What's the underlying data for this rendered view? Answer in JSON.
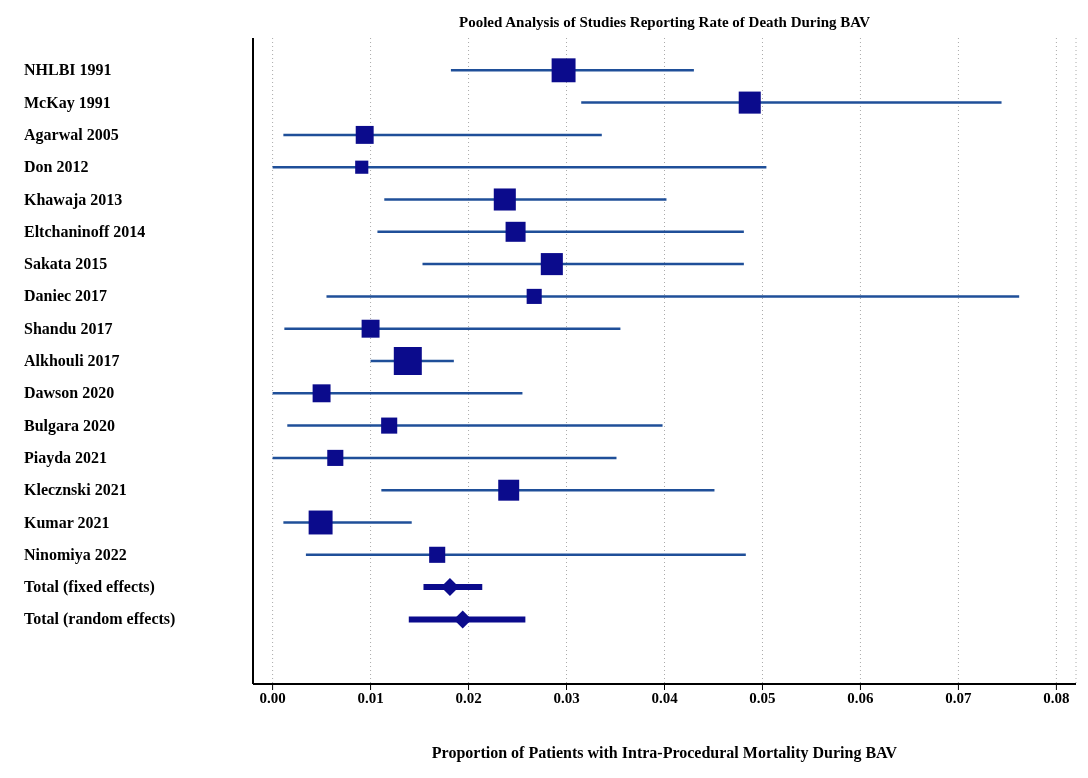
{
  "chart_data": {
    "type": "scatter",
    "title": "Pooled Analysis of Studies Reporting Rate of Death During BAV",
    "xlabel": "Proportion of Patients with Intra-Procedural Mortality During BAV",
    "orientation": "horizontal",
    "grid": "x",
    "legend": false,
    "categories": [
      "NHLBI 1991",
      "McKay 1991",
      "Agarwal 2005",
      "Don 2012",
      "Khawaja 2013",
      "Eltchaninoff 2014",
      "Sakata 2015",
      "Daniec 2017",
      "Shandu 2017",
      "Alkhouli 2017",
      "Dawson 2020",
      "Bulgara 2020",
      "Piayda 2021",
      "Klecznski 2021",
      "Kumar 2021",
      "Ninomiya 2022",
      "Total (fixed effects)",
      "Total (random effects)"
    ],
    "xlim": [
      -0.002,
      0.082
    ],
    "xticks": [
      {
        "value": 0,
        "label": "0.00"
      },
      {
        "value": 0.01,
        "label": "0.01"
      },
      {
        "value": 0.02,
        "label": "0.02"
      },
      {
        "value": 0.03,
        "label": "0.03"
      },
      {
        "value": 0.04,
        "label": "0.04"
      },
      {
        "value": 0.05,
        "label": "0.05"
      },
      {
        "value": 0.06,
        "label": "0.06"
      },
      {
        "value": 0.07,
        "label": "0.07"
      },
      {
        "value": 0.08,
        "label": "0.08"
      }
    ],
    "series": [
      {
        "type": "bubble",
        "marker": "square",
        "color": "#0b0b8c",
        "values": [
          0.0297,
          0.0487,
          0.0094,
          0.0091,
          0.0237,
          0.0248,
          0.0285,
          0.0267,
          0.01,
          0.0138,
          0.005,
          0.0119,
          0.0064,
          0.0241,
          0.0049,
          0.0168,
          null,
          null
        ],
        "errors": [
          [
            0.0182,
            0.043
          ],
          [
            0.0315,
            0.0744
          ],
          [
            0.0011,
            0.0336
          ],
          [
            0.0,
            0.0504
          ],
          [
            0.0114,
            0.0402
          ],
          [
            0.0107,
            0.0481
          ],
          [
            0.0153,
            0.0481
          ],
          [
            0.0055,
            0.0762
          ],
          [
            0.0012,
            0.0355
          ],
          [
            0.01,
            0.0185
          ],
          [
            0.0,
            0.0255
          ],
          [
            0.0015,
            0.0398
          ],
          [
            0.0,
            0.0351
          ],
          [
            0.0111,
            0.0451
          ],
          [
            0.0011,
            0.0142
          ],
          [
            0.0034,
            0.0483
          ],
          null,
          null
        ],
        "sizes": [
          0.73,
          0.62,
          0.41,
          0.22,
          0.62,
          0.51,
          0.62,
          0.29,
          0.41,
          1,
          0.41,
          0.33,
          0.33,
          0.56,
          0.73,
          0.33,
          null,
          null
        ]
      },
      {
        "type": "scatter",
        "marker": "diamond",
        "color": "#0b0b8c",
        "values": [
          null,
          null,
          null,
          null,
          null,
          null,
          null,
          null,
          null,
          null,
          null,
          null,
          null,
          null,
          null,
          null,
          0.0181,
          0.0194
        ],
        "errors": [
          null,
          null,
          null,
          null,
          null,
          null,
          null,
          null,
          null,
          null,
          null,
          null,
          null,
          null,
          null,
          null,
          [
            0.0154,
            0.0214
          ],
          [
            0.0139,
            0.0258
          ]
        ]
      }
    ]
  }
}
